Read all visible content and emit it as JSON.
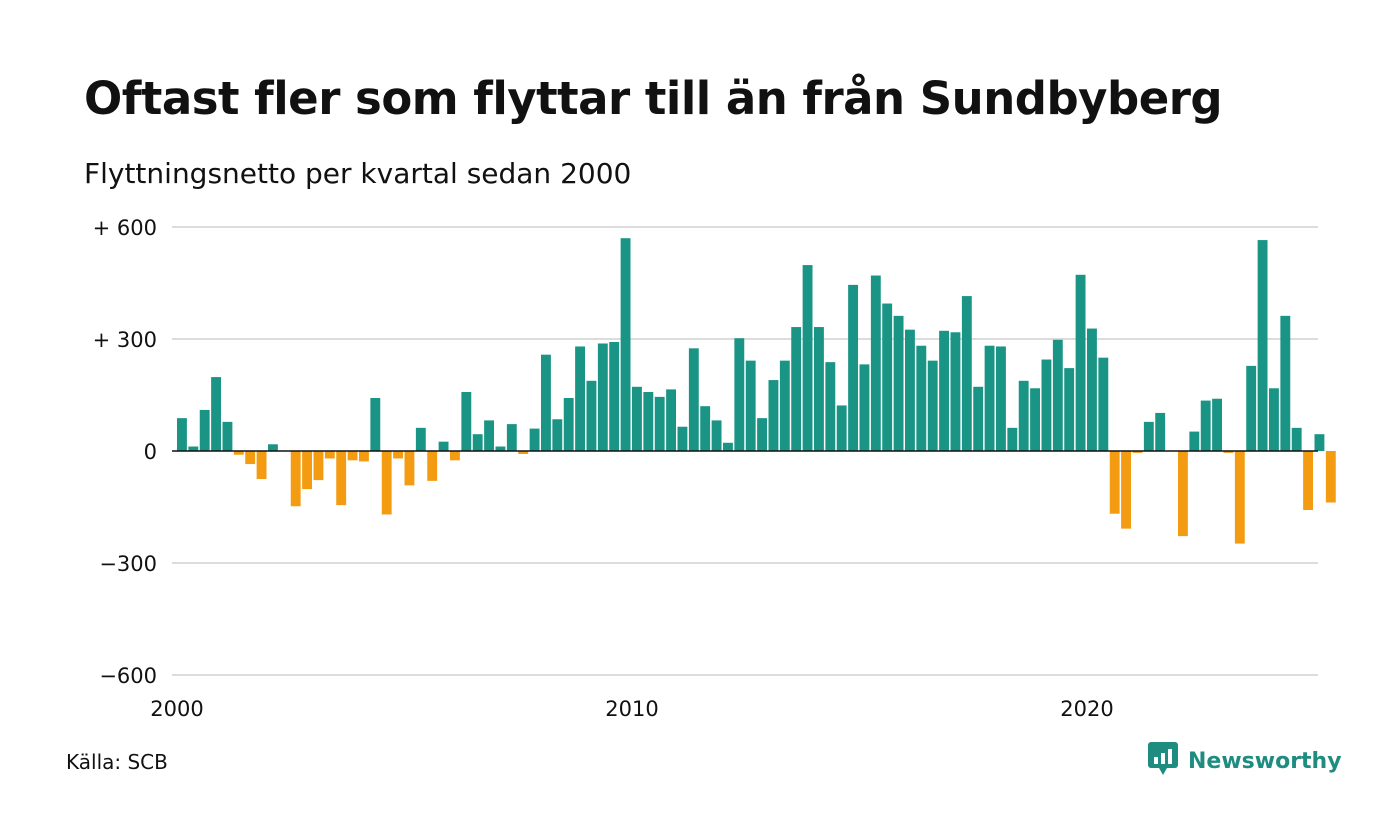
{
  "title": "Oftast fler som flyttar till än från Sundbyberg",
  "subtitle": "Flyttningsnetto per kvartal sedan 2000",
  "source": "Källa: SCB",
  "brand": "Newsworthy",
  "colors": {
    "positive": "#1a9484",
    "negative": "#f39c12",
    "grid": "#dcdcdc",
    "zero": "#111111",
    "brand": "#1f8c80"
  },
  "chart_data": {
    "type": "bar",
    "ylim": [
      -600,
      600
    ],
    "yticks": [
      600,
      300,
      0,
      -300,
      -600
    ],
    "ytick_labels": [
      "+ 600",
      "+ 300",
      "0",
      "−300",
      "−600"
    ],
    "xticks": [
      2000,
      2010,
      2020
    ],
    "xtick_labels": [
      "2000",
      "2010",
      "2020"
    ],
    "x_start": 2000,
    "periods_per_year": 4,
    "values": [
      88,
      12,
      110,
      198,
      78,
      -10,
      -35,
      -75,
      18,
      0,
      -148,
      -102,
      -78,
      -20,
      -145,
      -25,
      -28,
      142,
      -170,
      -20,
      -92,
      62,
      -80,
      25,
      -25,
      158,
      45,
      82,
      12,
      72,
      -8,
      60,
      258,
      85,
      142,
      280,
      188,
      288,
      292,
      570,
      172,
      158,
      145,
      165,
      65,
      275,
      120,
      82,
      22,
      302,
      242,
      88,
      190,
      242,
      332,
      498,
      332,
      238,
      122,
      445,
      232,
      470,
      395,
      362,
      325,
      282,
      242,
      322,
      318,
      415,
      172,
      282,
      280,
      62,
      188,
      168,
      245,
      298,
      222,
      472,
      328,
      250,
      -168,
      -208,
      -5,
      78,
      102,
      0,
      -228,
      52,
      135,
      140,
      -5,
      -248,
      228,
      565,
      168,
      362,
      62,
      -158,
      45,
      -138
    ]
  }
}
